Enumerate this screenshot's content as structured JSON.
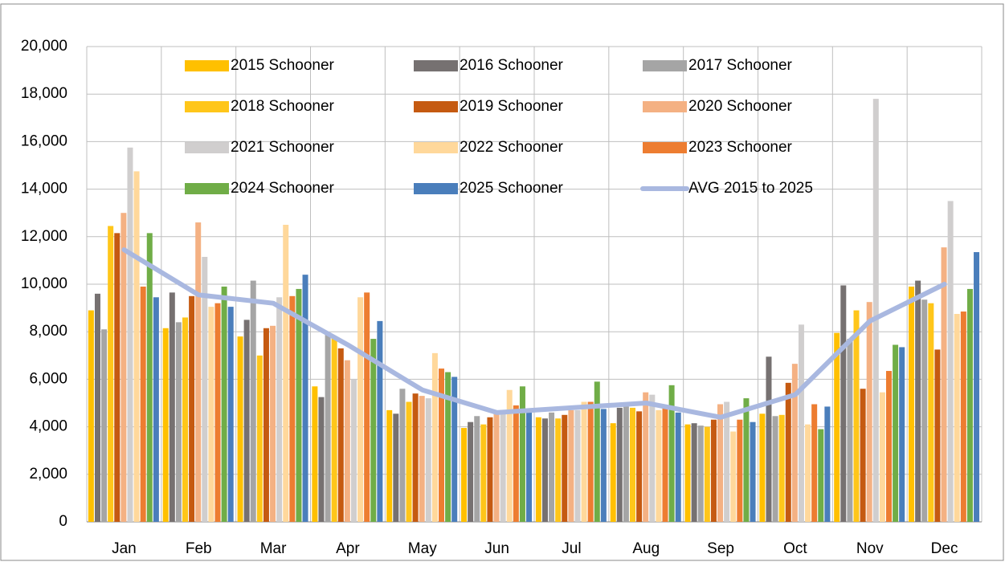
{
  "chart_data": {
    "type": "bar",
    "categories": [
      "Jan",
      "Feb",
      "Mar",
      "Apr",
      "May",
      "Jun",
      "Jul",
      "Aug",
      "Sep",
      "Oct",
      "Nov",
      "Dec"
    ],
    "series": [
      {
        "name": "2015 Schooner",
        "color": "#ffc000",
        "values": [
          8900,
          8150,
          7800,
          5700,
          4700,
          3950,
          4400,
          4150,
          4100,
          4550,
          7950,
          9900
        ]
      },
      {
        "name": "2016 Schooner",
        "color": "#767171",
        "values": [
          9600,
          9650,
          8500,
          5250,
          4550,
          4200,
          4350,
          4800,
          4150,
          6950,
          9950,
          10150
        ]
      },
      {
        "name": "2017 Schooner",
        "color": "#a5a5a5",
        "values": [
          8100,
          8400,
          10150,
          7900,
          5600,
          4450,
          4600,
          4850,
          4050,
          4450,
          7700,
          9350
        ]
      },
      {
        "name": "2018 Schooner",
        "color": "#ffc61a",
        "values": [
          12450,
          8600,
          7000,
          7750,
          5050,
          4100,
          4350,
          4800,
          4000,
          4500,
          8900,
          9200
        ]
      },
      {
        "name": "2019 Schooner",
        "color": "#c55a11",
        "values": [
          12150,
          9500,
          8150,
          7300,
          5400,
          4400,
          4500,
          4650,
          4300,
          5850,
          5600,
          7250
        ]
      },
      {
        "name": "2020 Schooner",
        "color": "#f4b183",
        "values": [
          13000,
          12600,
          8250,
          6800,
          5300,
          4600,
          4700,
          5450,
          4950,
          6650,
          9250,
          11550
        ]
      },
      {
        "name": "2021 Schooner",
        "color": "#d0cece",
        "values": [
          15750,
          11150,
          9450,
          6000,
          5200,
          4700,
          4700,
          5350,
          5050,
          8300,
          17800,
          13500
        ]
      },
      {
        "name": "2022 Schooner",
        "color": "#ffd89b",
        "values": [
          14750,
          9050,
          12500,
          9450,
          7100,
          5550,
          5050,
          4700,
          3800,
          4100,
          5450,
          8750
        ]
      },
      {
        "name": "2023 Schooner",
        "color": "#ed7d31",
        "values": [
          9900,
          9200,
          9500,
          9650,
          6450,
          4900,
          5050,
          4900,
          4300,
          4950,
          6350,
          8850
        ]
      },
      {
        "name": "2024 Schooner",
        "color": "#70ad47",
        "values": [
          12150,
          9900,
          9800,
          7700,
          6300,
          5700,
          5900,
          5750,
          5200,
          3900,
          7450,
          9800
        ]
      },
      {
        "name": "2025 Schooner",
        "color": "#4a7ebb",
        "values": [
          9450,
          9050,
          10400,
          8450,
          6100,
          4650,
          4750,
          4600,
          4200,
          4850,
          7350,
          11350
        ]
      },
      {
        "name": "AVG 2015 to 2025",
        "type": "line",
        "color": "#a9b8e0",
        "values": [
          11450,
          9550,
          9200,
          7450,
          5550,
          4600,
          4800,
          5000,
          4400,
          5350,
          8450,
          10000
        ]
      }
    ],
    "ylim": [
      0,
      20000
    ],
    "yticks": [
      0,
      {
        "value": 2000,
        "label": "2,000"
      },
      {
        "value": 4000,
        "label": "4,000"
      },
      {
        "value": 6000,
        "label": "6,000"
      },
      {
        "value": 8000,
        "label": "8,000"
      },
      {
        "value": 10000,
        "label": "10,000"
      },
      {
        "value": 12000,
        "label": "12,000"
      },
      {
        "value": 14000,
        "label": "14,000"
      },
      {
        "value": 16000,
        "label": "16,000"
      },
      {
        "value": 18000,
        "label": "18,000"
      },
      {
        "value": 20000,
        "label": "20,000"
      }
    ],
    "grid": true
  }
}
